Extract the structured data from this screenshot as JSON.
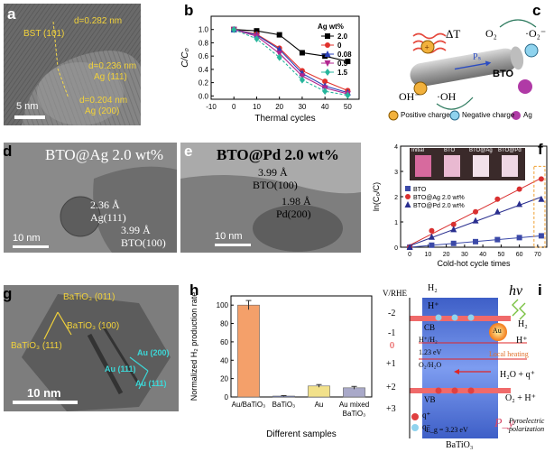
{
  "panels": {
    "a": {
      "label": "a",
      "d1": "d=0.282 nm",
      "p1": "BST (101)",
      "d2": "d=0.236 nm",
      "p2": "Ag (111)",
      "d3": "d=0.204 nm",
      "p3": "Ag (200)",
      "scale": "5 nm"
    },
    "b": {
      "label": "b"
    },
    "c": {
      "label": "c",
      "deltaT": "ΔT",
      "o2": "O₂",
      "o2m": "·O₂⁻",
      "oh": "OH⁻",
      "ohr": "·OH",
      "bto": "BTO",
      "ps": "Pₛ",
      "leg_pos": "Positive charge",
      "leg_neg": "Negative charge",
      "leg_ag": "Ag"
    },
    "d": {
      "label": "d",
      "title": "BTO@Ag 2.0 wt%",
      "l1": "2.36 Å",
      "l1b": "Ag(111)",
      "l2": "3.99 Å",
      "l2b": "BTO(100)",
      "scale": "10 nm"
    },
    "e": {
      "label": "e",
      "title": "BTO@Pd 2.0 wt%",
      "l1": "3.99 Å",
      "l1b": "BTO(100)",
      "l2": "1.98 Å",
      "l2b": "Pd(200)",
      "scale": "10 nm"
    },
    "f": {
      "label": "f",
      "inset": [
        "Initial",
        "BTO",
        "BTO@Ag",
        "BTO@Pd"
      ]
    },
    "g": {
      "label": "g",
      "l1": "BaTiO₃ (011)",
      "l2": "BaTiO₃ (100)",
      "l3": "BaTiO₃ (111)",
      "l4": "Au (200)",
      "l5": "Au (111)",
      "l6": "Au (111)",
      "scale": "10 nm"
    },
    "h": {
      "label": "h"
    },
    "i": {
      "label": "i",
      "yaxis": "V/RHE",
      "ticks": [
        "-2",
        "-1",
        "0",
        "+1",
        "+2",
        "+3"
      ],
      "h2a": "H₂",
      "hp1": "H⁺",
      "cb": "CB",
      "hh2": "H⁺/H₂",
      "gap": "1.23 eV",
      "o2h2o": "O₂/H₂O",
      "vb": "VB",
      "eg": "E_g = 3.23 eV",
      "bto": "BaTiO₃",
      "hv": "hν",
      "h2b": "H₂",
      "hp2": "H⁺",
      "au": "Au",
      "lh": "Local heating",
      "h2o": "H₂O + q⁺",
      "o2h": "O₂ + H⁺",
      "qp": "q⁺",
      "qm": "q⁻",
      "py": "P_y",
      "pyro": "Pyroelectric polarization"
    }
  },
  "chart_data": [
    {
      "id": "b",
      "type": "line",
      "xlabel": "Thermal cycles",
      "ylabel": "C/C₀",
      "legend_title": "Ag wt%",
      "xlim": [
        -10,
        55
      ],
      "ylim": [
        -0.05,
        1.2
      ],
      "xticks": [
        -10,
        0,
        10,
        20,
        30,
        40,
        50
      ],
      "yticks": [
        0.0,
        0.2,
        0.4,
        0.6,
        0.8,
        1.0
      ],
      "x": [
        0,
        10,
        20,
        30,
        40,
        50
      ],
      "series": [
        {
          "name": "2.0",
          "color": "#000000",
          "marker": "square",
          "values": [
            1.0,
            0.98,
            0.92,
            0.65,
            0.6,
            0.52
          ]
        },
        {
          "name": "0",
          "color": "#e0312b",
          "marker": "circle",
          "values": [
            1.0,
            0.93,
            0.72,
            0.38,
            0.22,
            0.08
          ]
        },
        {
          "name": "0.08",
          "color": "#2a3fb8",
          "marker": "triangle",
          "values": [
            1.0,
            0.92,
            0.7,
            0.34,
            0.15,
            0.05
          ]
        },
        {
          "name": "0.5",
          "color": "#b1258f",
          "marker": "triangle-down",
          "values": [
            1.0,
            0.9,
            0.64,
            0.3,
            0.12,
            0.03
          ]
        },
        {
          "name": "1.5",
          "color": "#27b59c",
          "marker": "diamond",
          "values": [
            1.0,
            0.86,
            0.58,
            0.24,
            0.07,
            0.01
          ]
        }
      ]
    },
    {
      "id": "f",
      "type": "scatter",
      "xlabel": "Cold-hot cycle times",
      "ylabel": "ln(C₀/C)",
      "xlim": [
        -5,
        75
      ],
      "ylim": [
        0,
        4
      ],
      "xticks": [
        0,
        10,
        20,
        30,
        40,
        50,
        60,
        70
      ],
      "yticks": [
        0,
        1,
        2,
        3,
        4
      ],
      "series": [
        {
          "name": "BTO",
          "color": "#3b49a8",
          "marker": "square",
          "x": [
            0,
            12,
            24,
            36,
            48,
            60,
            72
          ],
          "values": [
            0,
            0.08,
            0.15,
            0.22,
            0.3,
            0.38,
            0.45
          ]
        },
        {
          "name": "BTO@Ag 2.0 wt%",
          "color": "#d93030",
          "marker": "circle",
          "x": [
            0,
            12,
            24,
            36,
            48,
            60,
            72
          ],
          "values": [
            0,
            0.65,
            0.9,
            1.4,
            1.9,
            2.3,
            2.7
          ]
        },
        {
          "name": "BTO@Pd 2.0 wt%",
          "color": "#2a2f8f",
          "marker": "triangle",
          "x": [
            0,
            12,
            24,
            36,
            48,
            60,
            72
          ],
          "values": [
            0,
            0.4,
            0.7,
            1.05,
            1.4,
            1.7,
            1.9
          ]
        }
      ]
    },
    {
      "id": "h",
      "type": "bar",
      "xlabel": "Different samples",
      "ylabel": "Normalized H₂ production rate",
      "ylim": [
        0,
        110
      ],
      "yticks": [
        0,
        20,
        40,
        60,
        80,
        100
      ],
      "categories": [
        "Au/BaTiO₃",
        "BaTiO₃",
        "Au",
        "Au mixed BaTiO₃"
      ],
      "values": [
        100,
        1,
        12,
        10
      ],
      "errors": [
        5,
        0.5,
        1.5,
        1.5
      ],
      "colors": [
        "#f4a06a",
        "#7b8bd6",
        "#f2e18a",
        "#a9a9c9"
      ]
    }
  ]
}
